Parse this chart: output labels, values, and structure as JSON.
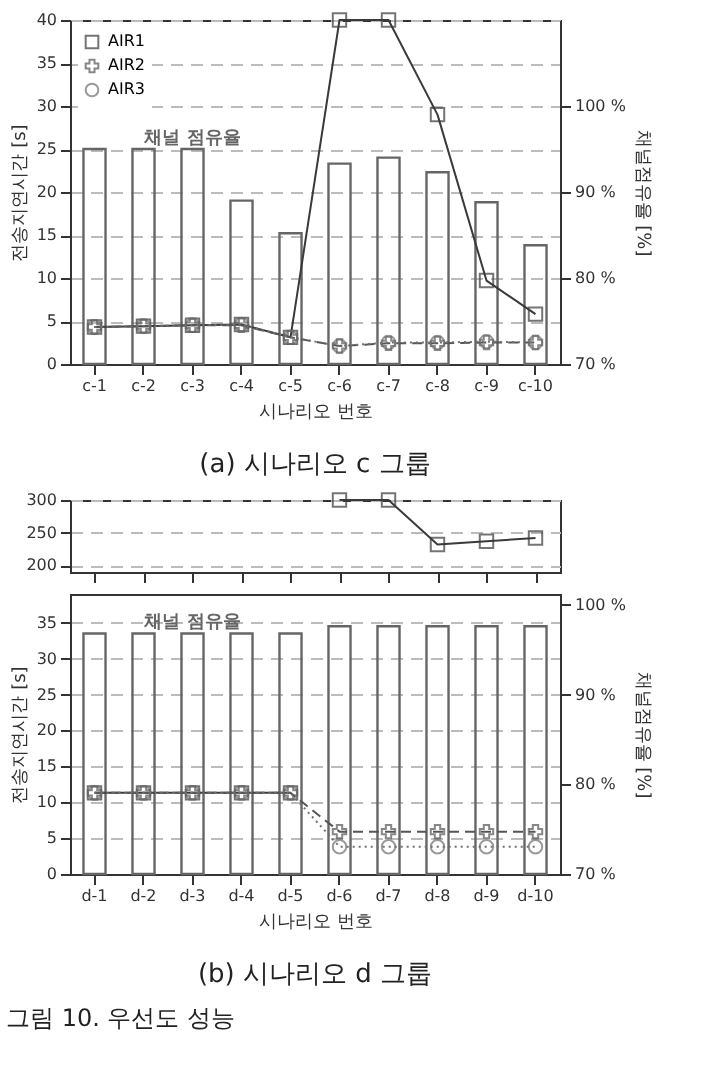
{
  "chart_data": [
    {
      "type": "line",
      "title": "(a) 시나리오 c 그룹",
      "xlabel": "시나리오 번호",
      "ylabel": "전송지연시간 [s]",
      "y2label": "채널점유율 [%]",
      "categories": [
        "c-1",
        "c-2",
        "c-3",
        "c-4",
        "c-5",
        "c-6",
        "c-7",
        "c-8",
        "c-9",
        "c-10"
      ],
      "series": [
        {
          "name": "채널 점유율",
          "type": "bar",
          "axis": "y2",
          "color": "#666666",
          "values": [
            95,
            95,
            95,
            89,
            85.2,
            93.3,
            94,
            92.3,
            88.8,
            83.8
          ]
        },
        {
          "name": "AIR1",
          "color": "#3a3a3a",
          "marker": "square",
          "line_style": "solid",
          "values": [
            4.3,
            4.4,
            4.5,
            4.6,
            3.1,
            40,
            40,
            29,
            9.7,
            5.8
          ]
        },
        {
          "name": "AIR2",
          "color": "#555555",
          "marker": "cross",
          "line_style": "dashed",
          "values": [
            4.3,
            4.4,
            4.5,
            4.5,
            3.1,
            2.1,
            2.4,
            2.4,
            2.5,
            2.5
          ]
        },
        {
          "name": "AIR3",
          "color": "#707070",
          "marker": "circle",
          "line_style": "dotted",
          "values": [
            4.3,
            4.4,
            4.5,
            4.6,
            3.1,
            2.1,
            2.5,
            2.5,
            2.6,
            2.5
          ]
        }
      ],
      "ylim": [
        0,
        40
      ],
      "yticks": [
        0,
        5,
        10,
        15,
        20,
        25,
        30,
        35,
        40
      ],
      "y2lim": [
        70,
        110
      ],
      "y2ticks": [
        {
          "value": 70,
          "label": "70 %"
        },
        {
          "value": 80,
          "label": "80 %"
        },
        {
          "value": 90,
          "label": "90 %"
        },
        {
          "value": 100,
          "label": "100 %"
        }
      ],
      "grid": "y",
      "legend": "top left"
    },
    {
      "type": "line",
      "tick_labels": "y",
      "categories": [
        null,
        null,
        null,
        null,
        null,
        null,
        null,
        null,
        null,
        null
      ],
      "series": [
        {
          "name": "AIR1",
          "color": "#3a3a3a",
          "marker": "square",
          "line_style": "solid",
          "values": [
            null,
            null,
            null,
            null,
            null,
            300,
            300,
            232,
            237,
            242
          ]
        },
        {
          "name": "AIR2",
          "color": "#555555",
          "marker": "cross",
          "line_style": "dashed",
          "values": [
            null,
            null,
            null,
            null,
            null,
            null,
            null,
            null,
            null,
            null
          ]
        },
        {
          "name": "AIR3",
          "color": "#707070",
          "marker": "circle",
          "line_style": "dotted",
          "values": [
            null,
            null,
            null,
            null,
            null,
            null,
            null,
            null,
            null,
            null
          ]
        }
      ],
      "ylim": [
        190,
        300
      ],
      "yticks": [
        200,
        250,
        300
      ],
      "grid": "y",
      "legend": "top left"
    },
    {
      "type": "line",
      "title": "(b) 시나리오 d 그룹",
      "xlabel": "시나리오 번호",
      "ylabel": "전송지연시간 [s]",
      "y2label": "채널점유율 [%]",
      "categories": [
        "d-1",
        "d-2",
        "d-3",
        "d-4",
        "d-5",
        "d-6",
        "d-7",
        "d-8",
        "d-9",
        "d-10"
      ],
      "series": [
        {
          "name": "채널 점유율",
          "type": "bar",
          "axis": "y2",
          "color": "#666666",
          "values": [
            96.8,
            96.8,
            96.8,
            96.8,
            96.8,
            97.6,
            97.6,
            97.6,
            97.6,
            97.6
          ]
        },
        {
          "name": "AIR1",
          "color": "#3a3a3a",
          "marker": "square",
          "line_style": "solid",
          "values": [
            11.3,
            11.3,
            11.3,
            11.3,
            11.3,
            null,
            null,
            null,
            null,
            null
          ]
        },
        {
          "name": "AIR2",
          "color": "#555555",
          "marker": "cross",
          "line_style": "dashed",
          "values": [
            11.3,
            11.3,
            11.3,
            11.3,
            11.3,
            5.9,
            5.9,
            5.9,
            5.9,
            5.9
          ]
        },
        {
          "name": "AIR3",
          "color": "#707070",
          "marker": "circle",
          "line_style": "dotted",
          "values": [
            11.3,
            11.3,
            11.3,
            11.3,
            11.3,
            3.8,
            3.8,
            3.8,
            3.8,
            3.8
          ]
        }
      ],
      "ylim": [
        0,
        39
      ],
      "yticks": [
        0,
        5,
        10,
        15,
        20,
        25,
        30,
        35
      ],
      "y2lim": [
        70,
        101.2
      ],
      "y2ticks": [
        {
          "value": 70,
          "label": "70 %"
        },
        {
          "value": 80,
          "label": "80 %"
        },
        {
          "value": 90,
          "label": "90 %"
        },
        {
          "value": 100,
          "label": "100 %"
        }
      ],
      "grid": "y",
      "annotations": [
        "그림 10. 우선도 성능"
      ]
    }
  ]
}
